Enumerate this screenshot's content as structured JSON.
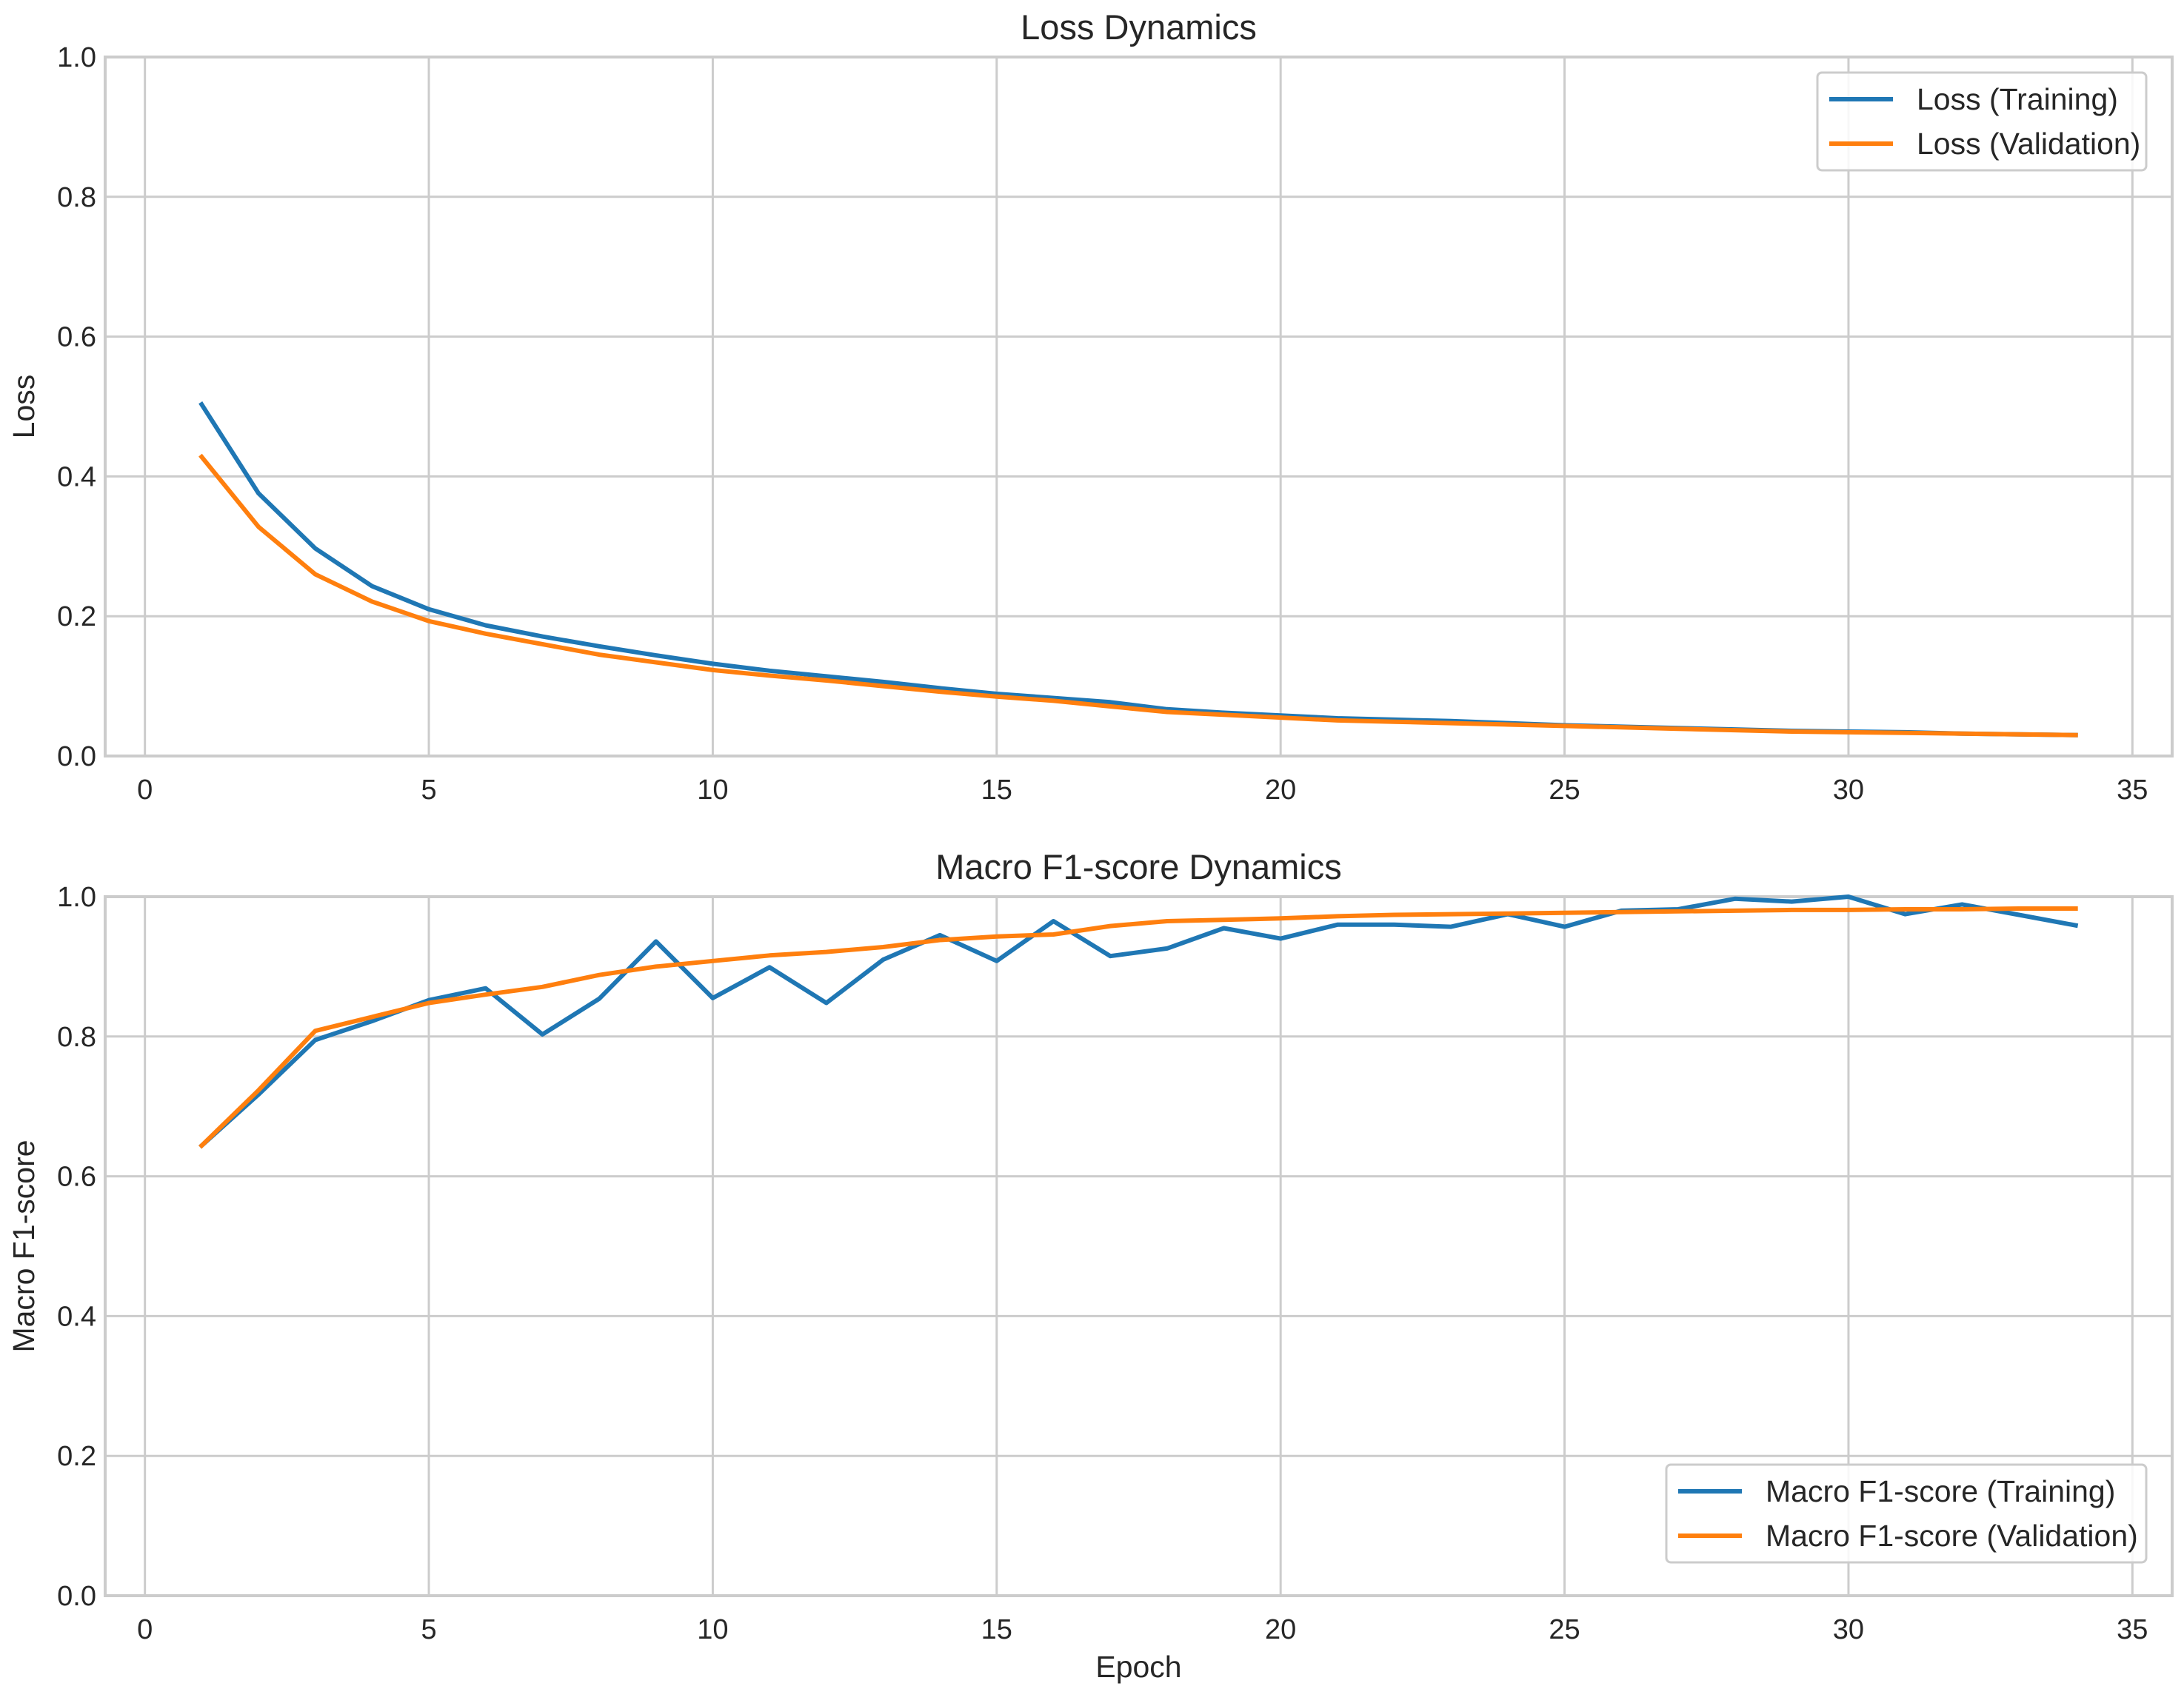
{
  "chart_data": [
    {
      "type": "line",
      "title": "Loss Dynamics",
      "xlabel": "",
      "ylabel": "Loss",
      "xlim": [
        -0.7,
        35.7
      ],
      "ylim": [
        0,
        1.0
      ],
      "xticks": [
        0,
        5,
        10,
        15,
        20,
        25,
        30,
        35
      ],
      "yticks": [
        0.0,
        0.2,
        0.4,
        0.6,
        0.8,
        1.0
      ],
      "xtick_labels": [
        "0",
        "5",
        "10",
        "15",
        "20",
        "25",
        "30",
        "35"
      ],
      "ytick_labels": [
        "0.0",
        "0.2",
        "0.4",
        "0.6",
        "0.8",
        "1.0"
      ],
      "grid": true,
      "legend_position": "upper-right",
      "x": [
        1,
        2,
        3,
        4,
        5,
        6,
        7,
        8,
        9,
        10,
        11,
        12,
        13,
        14,
        15,
        16,
        17,
        18,
        19,
        20,
        21,
        22,
        23,
        24,
        25,
        26,
        27,
        28,
        29,
        30,
        31,
        32,
        33,
        34
      ],
      "series": [
        {
          "name": "Loss (Training)",
          "color": "#1f77b4",
          "values": [
            0.503,
            0.376,
            0.297,
            0.243,
            0.21,
            0.187,
            0.171,
            0.157,
            0.144,
            0.132,
            0.122,
            0.114,
            0.106,
            0.097,
            0.089,
            0.083,
            0.077,
            0.067,
            0.062,
            0.058,
            0.054,
            0.052,
            0.05,
            0.047,
            0.044,
            0.042,
            0.04,
            0.038,
            0.036,
            0.035,
            0.034,
            0.032,
            0.031,
            0.03
          ]
        },
        {
          "name": "Loss (Validation)",
          "color": "#ff7f0e",
          "values": [
            0.428,
            0.328,
            0.26,
            0.221,
            0.193,
            0.175,
            0.16,
            0.145,
            0.134,
            0.123,
            0.115,
            0.108,
            0.1,
            0.092,
            0.085,
            0.079,
            0.071,
            0.063,
            0.059,
            0.055,
            0.051,
            0.049,
            0.047,
            0.045,
            0.043,
            0.041,
            0.039,
            0.037,
            0.035,
            0.034,
            0.033,
            0.032,
            0.031,
            0.03
          ]
        }
      ]
    },
    {
      "type": "line",
      "title": "Macro F1-score Dynamics",
      "xlabel": "Epoch",
      "ylabel": "Macro F1-score",
      "xlim": [
        -0.7,
        35.7
      ],
      "ylim": [
        0,
        1.0
      ],
      "xticks": [
        0,
        5,
        10,
        15,
        20,
        25,
        30,
        35
      ],
      "yticks": [
        0.0,
        0.2,
        0.4,
        0.6,
        0.8,
        1.0
      ],
      "xtick_labels": [
        "0",
        "5",
        "10",
        "15",
        "20",
        "25",
        "30",
        "35"
      ],
      "ytick_labels": [
        "0.0",
        "0.2",
        "0.4",
        "0.6",
        "0.8",
        "1.0"
      ],
      "grid": true,
      "legend_position": "lower-right",
      "x": [
        1,
        2,
        3,
        4,
        5,
        6,
        7,
        8,
        9,
        10,
        11,
        12,
        13,
        14,
        15,
        16,
        17,
        18,
        19,
        20,
        21,
        22,
        23,
        24,
        25,
        26,
        27,
        28,
        29,
        30,
        31,
        32,
        33,
        34
      ],
      "series": [
        {
          "name": "Macro F1-score (Training)",
          "color": "#1f77b4",
          "values": [
            0.644,
            0.717,
            0.795,
            0.822,
            0.852,
            0.869,
            0.803,
            0.854,
            0.936,
            0.855,
            0.899,
            0.848,
            0.91,
            0.945,
            0.908,
            0.965,
            0.915,
            0.926,
            0.955,
            0.94,
            0.96,
            0.96,
            0.957,
            0.975,
            0.957,
            0.98,
            0.982,
            0.997,
            0.993,
            1.0,
            0.975,
            0.989,
            0.974,
            0.959
          ]
        },
        {
          "name": "Macro F1-score (Validation)",
          "color": "#ff7f0e",
          "values": [
            0.644,
            0.723,
            0.808,
            0.828,
            0.848,
            0.86,
            0.871,
            0.888,
            0.9,
            0.908,
            0.916,
            0.921,
            0.928,
            0.938,
            0.943,
            0.946,
            0.958,
            0.965,
            0.967,
            0.969,
            0.972,
            0.974,
            0.975,
            0.976,
            0.977,
            0.978,
            0.979,
            0.98,
            0.981,
            0.981,
            0.982,
            0.982,
            0.983,
            0.983
          ]
        }
      ]
    }
  ]
}
